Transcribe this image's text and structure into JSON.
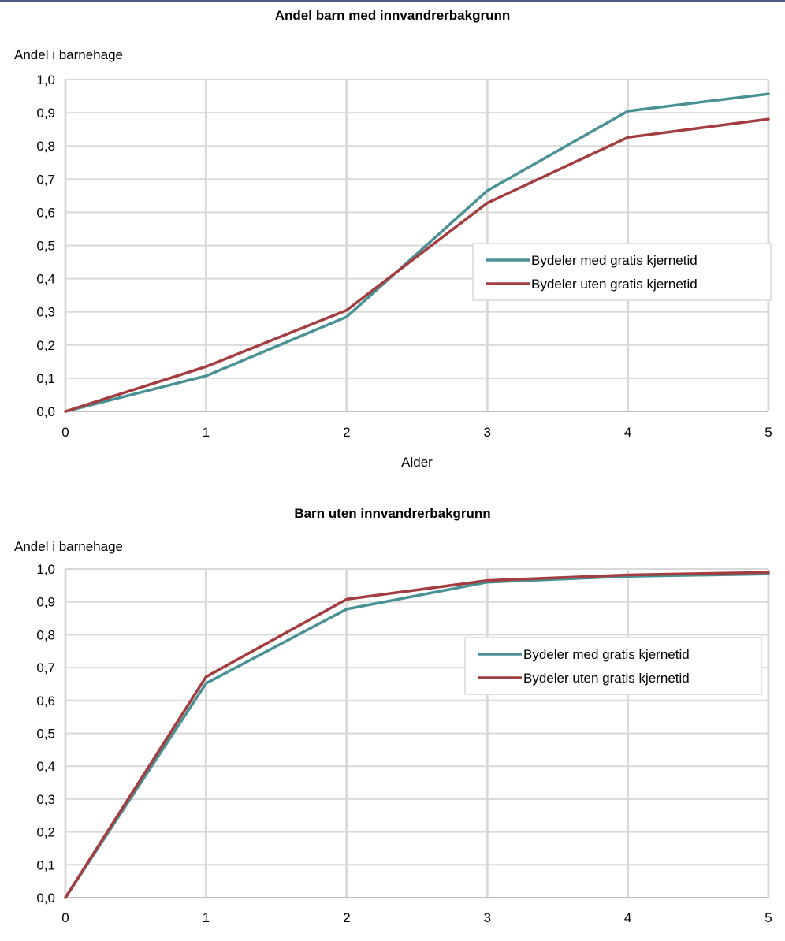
{
  "colors": {
    "top_rule": "#4a5a80",
    "grid": "#d9d9d9",
    "axis": "#bfbfbf"
  },
  "chart_data": [
    {
      "type": "line",
      "title": "Andel barn med innvandrerbakgrunn",
      "xlabel": "Alder",
      "ylabel": "Andel i barnehage",
      "x": [
        0,
        1,
        2,
        3,
        4,
        5
      ],
      "xlim": [
        0,
        5
      ],
      "ylim": [
        0,
        1
      ],
      "xticks": [
        "0",
        "1",
        "2",
        "3",
        "4",
        "5"
      ],
      "yticks": [
        "0,0",
        "0,1",
        "0,2",
        "0,3",
        "0,4",
        "0,5",
        "0,6",
        "0,7",
        "0,8",
        "0,9",
        "1,0"
      ],
      "grid": true,
      "legend_position": "right",
      "series": [
        {
          "name": "Bydeler med gratis kjernetid",
          "color": "#4a9195",
          "values": [
            0.0,
            0.107,
            0.285,
            0.665,
            0.905,
            0.957
          ]
        },
        {
          "name": "Bydeler uten gratis kjernetid",
          "color": "#a33d3f",
          "values": [
            0.0,
            0.135,
            0.305,
            0.628,
            0.826,
            0.881
          ]
        }
      ]
    },
    {
      "type": "line",
      "title": "Barn uten innvandrerbakgrunn",
      "xlabel": "Alder",
      "ylabel": "Andel i barnehage",
      "x": [
        0,
        1,
        2,
        3,
        4,
        5
      ],
      "xlim": [
        0,
        5
      ],
      "ylim": [
        0,
        1
      ],
      "xticks": [
        "0",
        "1",
        "2",
        "3",
        "4",
        "5"
      ],
      "yticks": [
        "0,0",
        "0,1",
        "0,2",
        "0,3",
        "0,4",
        "0,5",
        "0,6",
        "0,7",
        "0,8",
        "0,9",
        "1,0"
      ],
      "grid": true,
      "legend_position": "right",
      "series": [
        {
          "name": "Bydeler med gratis kjernetid",
          "color": "#4a9195",
          "values": [
            0.0,
            0.652,
            0.878,
            0.96,
            0.978,
            0.985
          ]
        },
        {
          "name": "Bydeler uten gratis kjernetid",
          "color": "#a33d3f",
          "values": [
            0.0,
            0.672,
            0.908,
            0.965,
            0.982,
            0.99
          ]
        }
      ]
    }
  ]
}
